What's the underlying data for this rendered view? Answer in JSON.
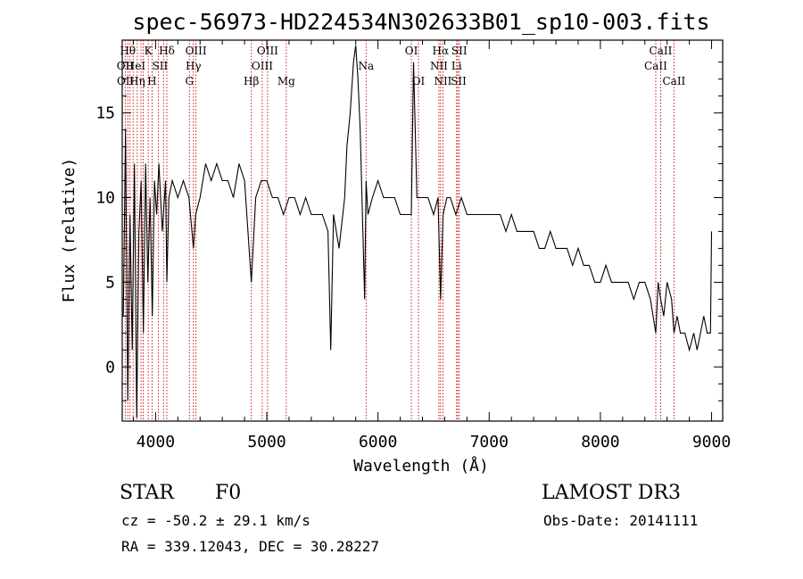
{
  "chart_data": {
    "type": "line",
    "title": "spec-56973-HD224534N302633B01_sp10-003.fits",
    "xlabel": "Wavelength (Å)",
    "ylabel": "Flux (relative)",
    "xlim": [
      3700,
      9100
    ],
    "ylim": [
      -3.2,
      19.3
    ],
    "x_ticks": [
      4000,
      5000,
      6000,
      7000,
      8000,
      9000
    ],
    "y_ticks": [
      0,
      5,
      10,
      15
    ],
    "series": [
      {
        "name": "flux",
        "x": [
          3710,
          3730,
          3750,
          3770,
          3790,
          3810,
          3830,
          3850,
          3870,
          3890,
          3910,
          3930,
          3950,
          3970,
          3990,
          4010,
          4030,
          4060,
          4090,
          4101,
          4120,
          4150,
          4200,
          4250,
          4300,
          4340,
          4360,
          4400,
          4450,
          4500,
          4550,
          4600,
          4650,
          4700,
          4750,
          4800,
          4861,
          4900,
          4950,
          5000,
          5050,
          5100,
          5150,
          5200,
          5250,
          5300,
          5350,
          5400,
          5450,
          5500,
          5550,
          5575,
          5600,
          5650,
          5700,
          5720,
          5750,
          5780,
          5800,
          5820,
          5840,
          5860,
          5880,
          5893,
          5910,
          5950,
          6000,
          6050,
          6100,
          6150,
          6200,
          6250,
          6300,
          6320,
          6350,
          6400,
          6450,
          6500,
          6540,
          6563,
          6585,
          6620,
          6650,
          6700,
          6750,
          6800,
          6850,
          6900,
          6950,
          7000,
          7050,
          7100,
          7150,
          7200,
          7250,
          7300,
          7350,
          7400,
          7450,
          7500,
          7550,
          7600,
          7650,
          7700,
          7750,
          7800,
          7850,
          7900,
          7950,
          8000,
          8050,
          8100,
          8150,
          8200,
          8250,
          8300,
          8350,
          8400,
          8450,
          8498,
          8520,
          8542,
          8570,
          8600,
          8640,
          8662,
          8690,
          8720,
          8760,
          8800,
          8840,
          8870,
          8900,
          8930,
          8960,
          8990,
          9000
        ],
        "y": [
          3,
          14,
          -2,
          9,
          1,
          12,
          -3,
          8,
          11,
          2,
          12,
          5,
          10,
          3,
          11,
          9,
          12,
          8,
          11,
          5,
          10,
          11,
          10,
          11,
          10,
          7,
          9,
          10,
          12,
          11,
          12,
          11,
          11,
          10,
          12,
          11,
          5,
          10,
          11,
          11,
          10,
          10,
          9,
          10,
          10,
          9,
          10,
          9,
          9,
          9,
          8,
          1,
          9,
          7,
          10,
          13,
          15,
          18,
          19,
          17,
          14,
          9,
          4,
          11,
          9,
          10,
          11,
          10,
          10,
          10,
          9,
          9,
          9,
          18,
          10,
          10,
          10,
          9,
          10,
          4,
          9,
          10,
          10,
          9,
          10,
          9,
          9,
          9,
          9,
          9,
          9,
          9,
          8,
          9,
          8,
          8,
          8,
          8,
          7,
          7,
          8,
          7,
          7,
          7,
          6,
          7,
          6,
          6,
          5,
          5,
          6,
          5,
          5,
          5,
          5,
          4,
          5,
          5,
          4,
          2,
          5,
          4,
          3,
          5,
          4,
          2,
          3,
          2,
          2,
          1,
          2,
          1,
          2,
          3,
          2,
          2,
          8
        ]
      }
    ],
    "line_markers": {
      "wavelengths": [
        3727,
        3750,
        3770,
        3798,
        3835,
        3869,
        3889,
        3934,
        3968,
        4026,
        4072,
        4101,
        4304,
        4340,
        4363,
        4861,
        4959,
        5007,
        5175,
        5893,
        6300,
        6364,
        6548,
        6563,
        6584,
        6707,
        6717,
        6731,
        8498,
        8542,
        8662
      ],
      "labels": [
        {
          "text": "Hθ",
          "x": 3750,
          "row": 1
        },
        {
          "text": "OII",
          "x": 3727,
          "row": 2
        },
        {
          "text": "OII",
          "x": 3729,
          "row": 3
        },
        {
          "text": "K",
          "x": 3934,
          "row": 1
        },
        {
          "text": "HeI",
          "x": 3820,
          "row": 2
        },
        {
          "text": "Hη",
          "x": 3835,
          "row": 3
        },
        {
          "text": "SII",
          "x": 4040,
          "row": 2
        },
        {
          "text": "H",
          "x": 3968,
          "row": 3
        },
        {
          "text": "Hδ",
          "x": 4101,
          "row": 1
        },
        {
          "text": "OIII",
          "x": 4363,
          "row": 1
        },
        {
          "text": "Hγ",
          "x": 4340,
          "row": 2
        },
        {
          "text": "G",
          "x": 4304,
          "row": 3
        },
        {
          "text": "OIII",
          "x": 5007,
          "row": 1
        },
        {
          "text": "OIII",
          "x": 4959,
          "row": 2
        },
        {
          "text": "Hβ",
          "x": 4861,
          "row": 3
        },
        {
          "text": "Mg",
          "x": 5175,
          "row": 3
        },
        {
          "text": "Na",
          "x": 5893,
          "row": 2
        },
        {
          "text": "OI",
          "x": 6300,
          "row": 1
        },
        {
          "text": "OI",
          "x": 6364,
          "row": 3
        },
        {
          "text": "Hα",
          "x": 6563,
          "row": 1
        },
        {
          "text": "SII",
          "x": 6731,
          "row": 1
        },
        {
          "text": "NII",
          "x": 6548,
          "row": 2
        },
        {
          "text": "Li",
          "x": 6707,
          "row": 2
        },
        {
          "text": "NII",
          "x": 6584,
          "row": 3
        },
        {
          "text": "SII",
          "x": 6725,
          "row": 3
        },
        {
          "text": "CaII",
          "x": 8542,
          "row": 1
        },
        {
          "text": "CaII",
          "x": 8498,
          "row": 2
        },
        {
          "text": "CaII",
          "x": 8662,
          "row": 3
        }
      ]
    }
  },
  "info": {
    "class_label": "STAR",
    "subclass_label": "F0",
    "survey_label": "LAMOST DR3",
    "redshift_text": "cz = -50.2 ± 29.1 km/s",
    "obsdate_text": "Obs-Date: 20141111",
    "coords_text": "RA = 339.12043, DEC =  30.28227"
  },
  "colors": {
    "line": "#000000",
    "marker": "#cc0000",
    "axis": "#000000"
  }
}
